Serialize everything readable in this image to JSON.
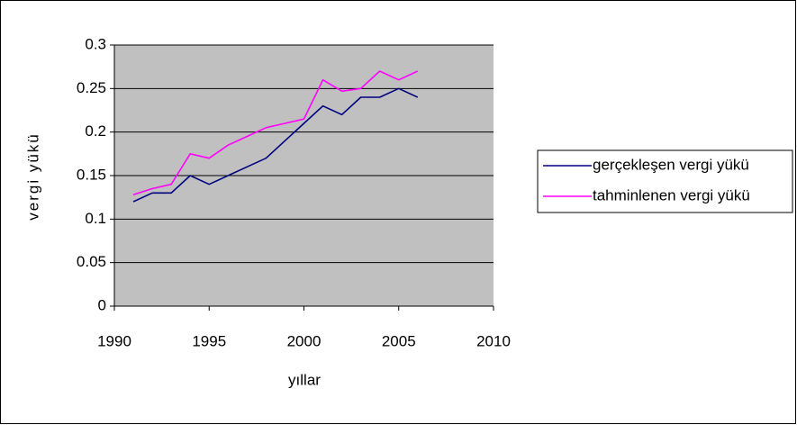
{
  "chart_data": {
    "type": "line",
    "x_label": "yıllar",
    "y_label": "vergi yükü",
    "x": [
      1991,
      1992,
      1993,
      1994,
      1995,
      1996,
      1997,
      1998,
      1999,
      2000,
      2001,
      2002,
      2003,
      2004,
      2005,
      2006
    ],
    "series": [
      {
        "name": "gerçekleşen vergi yükü",
        "color": "#000080",
        "values": [
          0.12,
          0.13,
          0.13,
          0.15,
          0.14,
          0.15,
          0.16,
          0.17,
          0.19,
          0.21,
          0.23,
          0.22,
          0.24,
          0.24,
          0.25,
          0.24
        ]
      },
      {
        "name": "tahminlenen vergi yükü",
        "color": "#ff00ff",
        "values": [
          0.128,
          0.135,
          0.14,
          0.175,
          0.17,
          0.185,
          0.195,
          0.205,
          0.21,
          0.215,
          0.26,
          0.247,
          0.25,
          0.27,
          0.26,
          0.27
        ]
      }
    ],
    "xlim": [
      1990,
      2010
    ],
    "xticks": [
      1990,
      1995,
      2000,
      2005,
      2010
    ],
    "ylim": [
      0,
      0.3
    ],
    "yticks": [
      0,
      0.05,
      0.1,
      0.15,
      0.2,
      0.25,
      0.3
    ],
    "grid": true,
    "plot_background": "#c0c0c0",
    "legend": "right"
  }
}
